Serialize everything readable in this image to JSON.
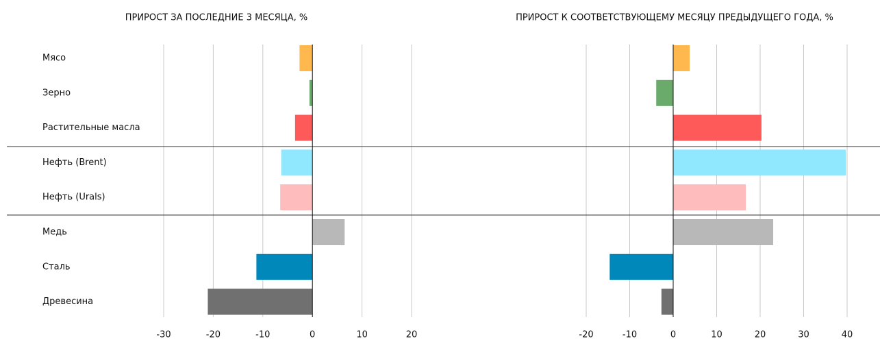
{
  "chart_data": [
    {
      "type": "bar",
      "orientation": "horizontal",
      "title": "ПРИРОСТ ЗА ПОСЛЕДНИЕ 3 МЕСЯЦА, %",
      "categories": [
        "Мясо",
        "Зерно",
        "Растительные масла",
        "Нефть (Brent)",
        "Нефть (Urals)",
        "Медь",
        "Сталь",
        "Древесина"
      ],
      "values": [
        -2.6,
        -0.6,
        -3.5,
        -6.3,
        -6.5,
        6.5,
        -11.3,
        -21.1
      ],
      "colors": [
        "#ffb84d",
        "#6aaa6a",
        "#ff5a5a",
        "#90e8ff",
        "#ffbcbc",
        "#b8b8b8",
        "#0088bb",
        "#707070"
      ],
      "xlim": [
        -30,
        20
      ],
      "xticks": [
        -30,
        -20,
        -10,
        0,
        10,
        20
      ],
      "grid": true
    },
    {
      "type": "bar",
      "orientation": "horizontal",
      "title": "ПРИРОСТ К СООТВЕТСТВУЮЩЕМУ МЕСЯЦУ ПРЕДЫДУЩЕГО ГОДА, %",
      "values": [
        3.8,
        -3.9,
        20.3,
        39.7,
        16.7,
        23,
        -14.6,
        -2.7
      ],
      "colors": [
        "#ffb84d",
        "#6aaa6a",
        "#ff5a5a",
        "#90e8ff",
        "#ffbcbc",
        "#b8b8b8",
        "#0088bb",
        "#707070"
      ],
      "xlim": [
        -20,
        40
      ],
      "xticks": [
        -20,
        -10,
        0,
        10,
        20,
        30,
        40
      ],
      "grid": true
    }
  ]
}
